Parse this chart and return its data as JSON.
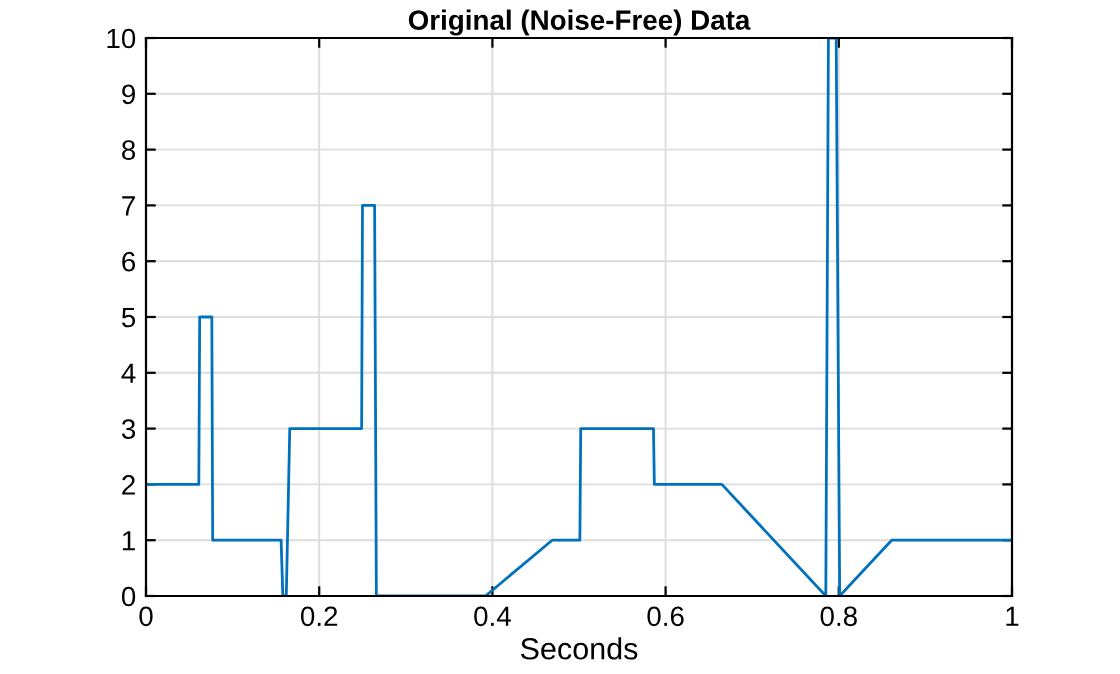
{
  "chart_data": {
    "type": "line",
    "title": "Original (Noise-Free) Data",
    "xlabel": "Seconds",
    "x": [
      0,
      0.061,
      0.062,
      0.076,
      0.077,
      0.156,
      0.158,
      0.162,
      0.166,
      0.249,
      0.25,
      0.264,
      0.266,
      0.392,
      0.469,
      0.501,
      0.502,
      0.586,
      0.587,
      0.665,
      0.785,
      0.788,
      0.797,
      0.801,
      0.861,
      1
    ],
    "series": [
      {
        "color": "#0072bd",
        "values": [
          2,
          2,
          5,
          5,
          1,
          1,
          0,
          0,
          3,
          3,
          7,
          7,
          0,
          0,
          1,
          1,
          3,
          3,
          2,
          2,
          0,
          10,
          10,
          0,
          1,
          1
        ]
      }
    ],
    "xlim": [
      0,
      1
    ],
    "ylim": [
      0,
      10
    ],
    "xticks": [
      0,
      0.2,
      0.4,
      0.6,
      0.8,
      1
    ],
    "yticks": [
      0,
      1,
      2,
      3,
      4,
      5,
      6,
      7,
      8,
      9,
      10
    ],
    "grid": true,
    "line_style": "solid",
    "marker": "none"
  }
}
